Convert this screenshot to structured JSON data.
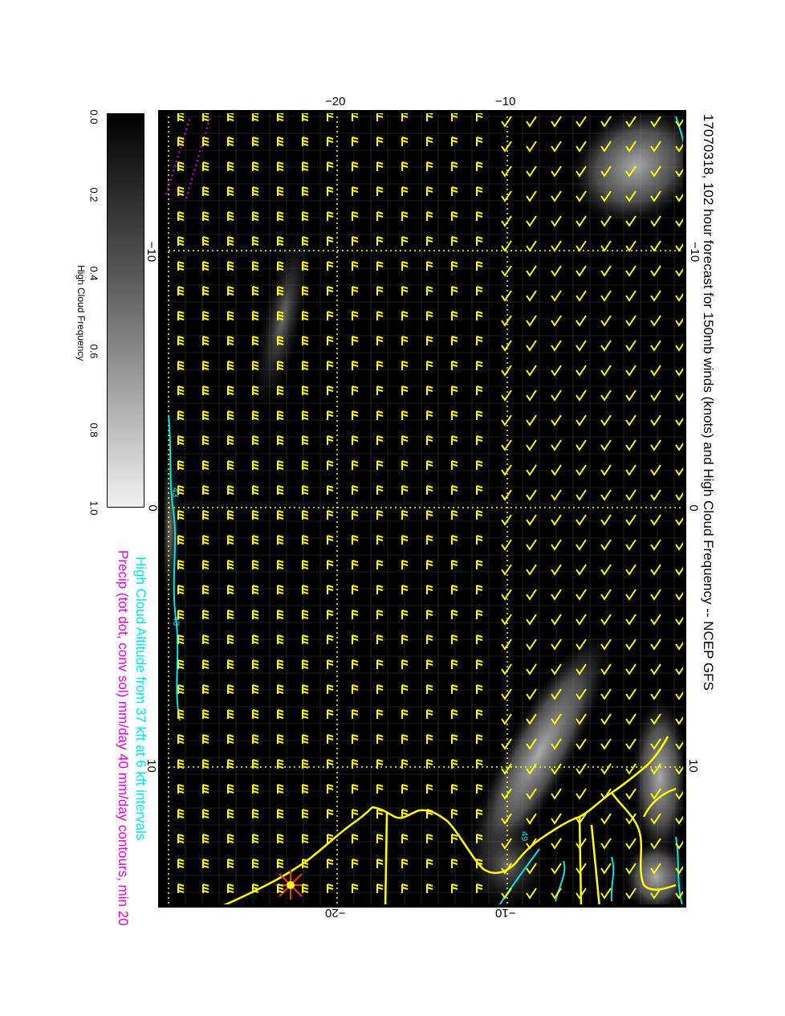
{
  "title": "17070318, 102 hour forecast for 150mb winds (knots) and High Cloud Frequency -- NCEP GFS",
  "stamp": "17070318",
  "notes": {
    "cloud_altitude": "High Cloud Altitude from 37 kft at 6 kft intervals",
    "precip": "Precip (tot dot, conv sol) mm/day 40 mm/day contours, min 20"
  },
  "colorbar": {
    "title": "High Cloud Frequency",
    "ticks": [
      "0.0",
      "0.2",
      "0.4",
      "0.6",
      "0.8",
      "1.0"
    ]
  },
  "axes": {
    "top_labels": [
      "−20",
      "−10"
    ],
    "bottom_labels": [
      "−20",
      "−10"
    ],
    "left_labels": [
      "−10",
      "0",
      "10"
    ],
    "right_labels": [
      "−10",
      "0",
      "10"
    ]
  },
  "contour_labels": [
    "43",
    "43",
    "49"
  ],
  "colors": {
    "background": "#000000",
    "wind_barbs": "#ffff00",
    "coastline": "#ffff00",
    "cloud_altitude_contour": "#00e5e5",
    "precip_contour": "#e000e0",
    "title_stamp": "#ff00ff"
  },
  "icons": [
    "storm-marker-icon"
  ]
}
